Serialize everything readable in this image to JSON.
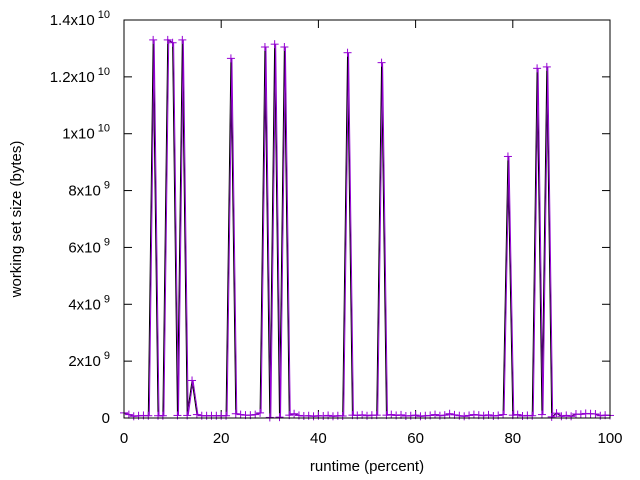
{
  "chart_data": {
    "type": "line",
    "title": "",
    "xlabel": "runtime (percent)",
    "ylabel": "working set size (bytes)",
    "xlim": [
      0,
      100
    ],
    "ylim": [
      0,
      14000000000
    ],
    "grid": false,
    "legend": "none",
    "x_ticks": [
      {
        "value": 0,
        "label": "0"
      },
      {
        "value": 20,
        "label": "20"
      },
      {
        "value": 40,
        "label": "40"
      },
      {
        "value": 60,
        "label": "60"
      },
      {
        "value": 80,
        "label": "80"
      },
      {
        "value": 100,
        "label": "100"
      }
    ],
    "y_ticks": [
      {
        "value": 0,
        "mantissa": "0",
        "exponent": ""
      },
      {
        "value": 2000000000,
        "mantissa": "2x10",
        "exponent": "9"
      },
      {
        "value": 4000000000,
        "mantissa": "4x10",
        "exponent": "9"
      },
      {
        "value": 6000000000,
        "mantissa": "6x10",
        "exponent": "9"
      },
      {
        "value": 8000000000,
        "mantissa": "8x10",
        "exponent": "9"
      },
      {
        "value": 10000000000,
        "mantissa": "1x10",
        "exponent": "10"
      },
      {
        "value": 12000000000,
        "mantissa": "1.2x10",
        "exponent": "10"
      },
      {
        "value": 14000000000,
        "mantissa": "1.4x10",
        "exponent": "10"
      }
    ],
    "series": [
      {
        "name": "working set",
        "color": "#9400d3",
        "marker": "plus",
        "x_step": 1,
        "values": [
          180000000,
          120000000,
          60000000,
          80000000,
          90000000,
          80000000,
          13300000000,
          80000000,
          80000000,
          13300000000,
          13200000000,
          90000000,
          13300000000,
          90000000,
          1320000000,
          120000000,
          80000000,
          80000000,
          80000000,
          80000000,
          80000000,
          80000000,
          12650000000,
          150000000,
          120000000,
          100000000,
          100000000,
          120000000,
          180000000,
          13050000000,
          20000000,
          13150000000,
          30000000,
          13050000000,
          100000000,
          150000000,
          90000000,
          70000000,
          80000000,
          60000000,
          80000000,
          70000000,
          90000000,
          60000000,
          80000000,
          70000000,
          12850000000,
          100000000,
          90000000,
          110000000,
          80000000,
          100000000,
          100000000,
          12500000000,
          100000000,
          120000000,
          90000000,
          110000000,
          70000000,
          80000000,
          100000000,
          60000000,
          80000000,
          90000000,
          120000000,
          80000000,
          100000000,
          150000000,
          110000000,
          80000000,
          60000000,
          90000000,
          120000000,
          100000000,
          80000000,
          110000000,
          70000000,
          90000000,
          120000000,
          9200000000,
          100000000,
          120000000,
          70000000,
          90000000,
          80000000,
          12300000000,
          120000000,
          12350000000,
          40000000,
          170000000,
          60000000,
          90000000,
          60000000,
          140000000,
          130000000,
          160000000,
          150000000,
          140000000,
          80000000,
          100000000,
          90000000
        ]
      }
    ]
  }
}
